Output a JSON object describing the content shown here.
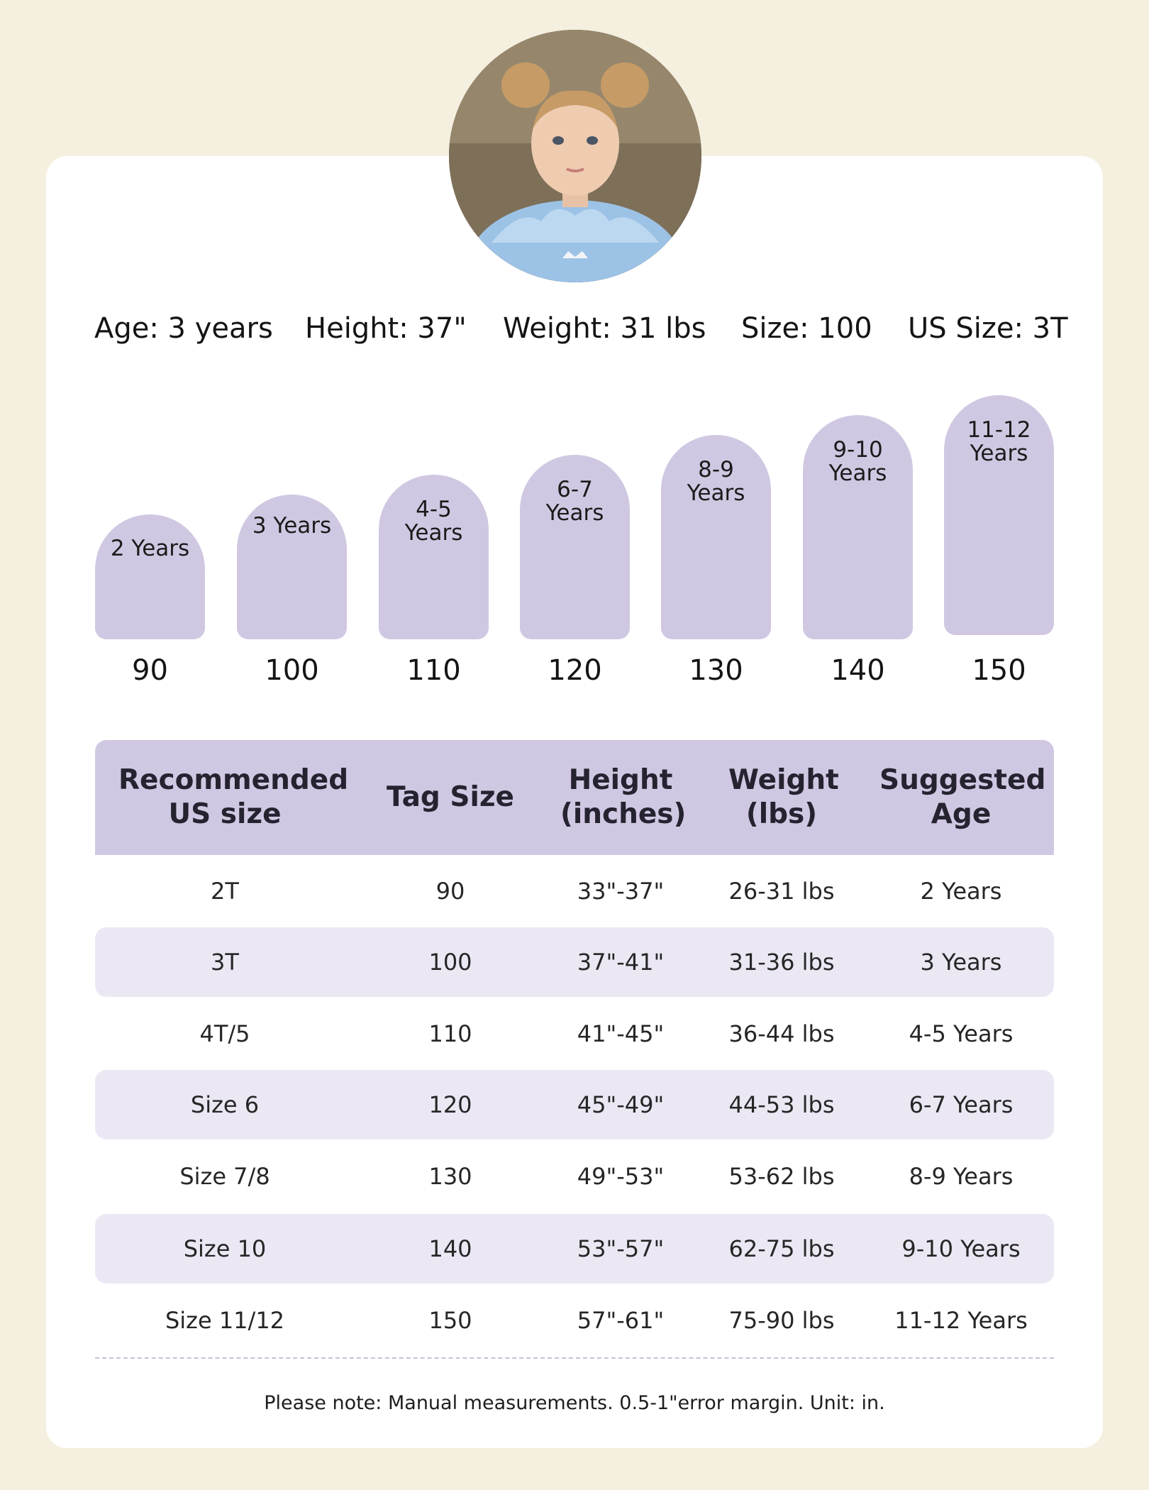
{
  "profile": {
    "stats": [
      {
        "text": "Age: 3 years"
      },
      {
        "text": "Height: 37\""
      },
      {
        "text": "Weight: 31 lbs"
      },
      {
        "text": "Size: 100"
      },
      {
        "text": "US Size: 3T"
      }
    ]
  },
  "size_steps": [
    {
      "age_label": "2 Years",
      "tag": "90"
    },
    {
      "age_label": "3 Years",
      "tag": "100"
    },
    {
      "age_label": "4-5 Years",
      "tag": "110"
    },
    {
      "age_label": "6-7 Years",
      "tag": "120"
    },
    {
      "age_label": "8-9 Years",
      "tag": "130"
    },
    {
      "age_label": "9-10 Years",
      "tag": "140"
    },
    {
      "age_label": "11-12 Years",
      "tag": "150"
    }
  ],
  "table": {
    "headers": [
      "Recommended US size",
      "Tag Size",
      "Height (inches)",
      "Weight (lbs)",
      "Suggested Age"
    ],
    "rows": [
      [
        "2T",
        "90",
        "33\"-37\"",
        "26-31 lbs",
        "2 Years"
      ],
      [
        "3T",
        "100",
        "37\"-41\"",
        "31-36 lbs",
        "3 Years"
      ],
      [
        "4T/5",
        "110",
        "41\"-45\"",
        "36-44 lbs",
        "4-5 Years"
      ],
      [
        "Size 6",
        "120",
        "45\"-49\"",
        "44-53 lbs",
        "6-7 Years"
      ],
      [
        "Size 7/8",
        "130",
        "49\"-53\"",
        "53-62 lbs",
        "8-9 Years"
      ],
      [
        "Size 10",
        "140",
        "53\"-57\"",
        "62-75 lbs",
        "9-10 Years"
      ],
      [
        "Size 11/12",
        "150",
        "57\"-61\"",
        "75-90 lbs",
        "11-12 Years"
      ]
    ]
  },
  "note": "Please note: Manual measurements. 0.5-1\"error margin. Unit: in.",
  "colors": {
    "page_bg": "#f5efdf",
    "card_bg": "#ffffff",
    "accent_lavender": "#d0c8e2",
    "row_shade": "#ebe8f4"
  }
}
